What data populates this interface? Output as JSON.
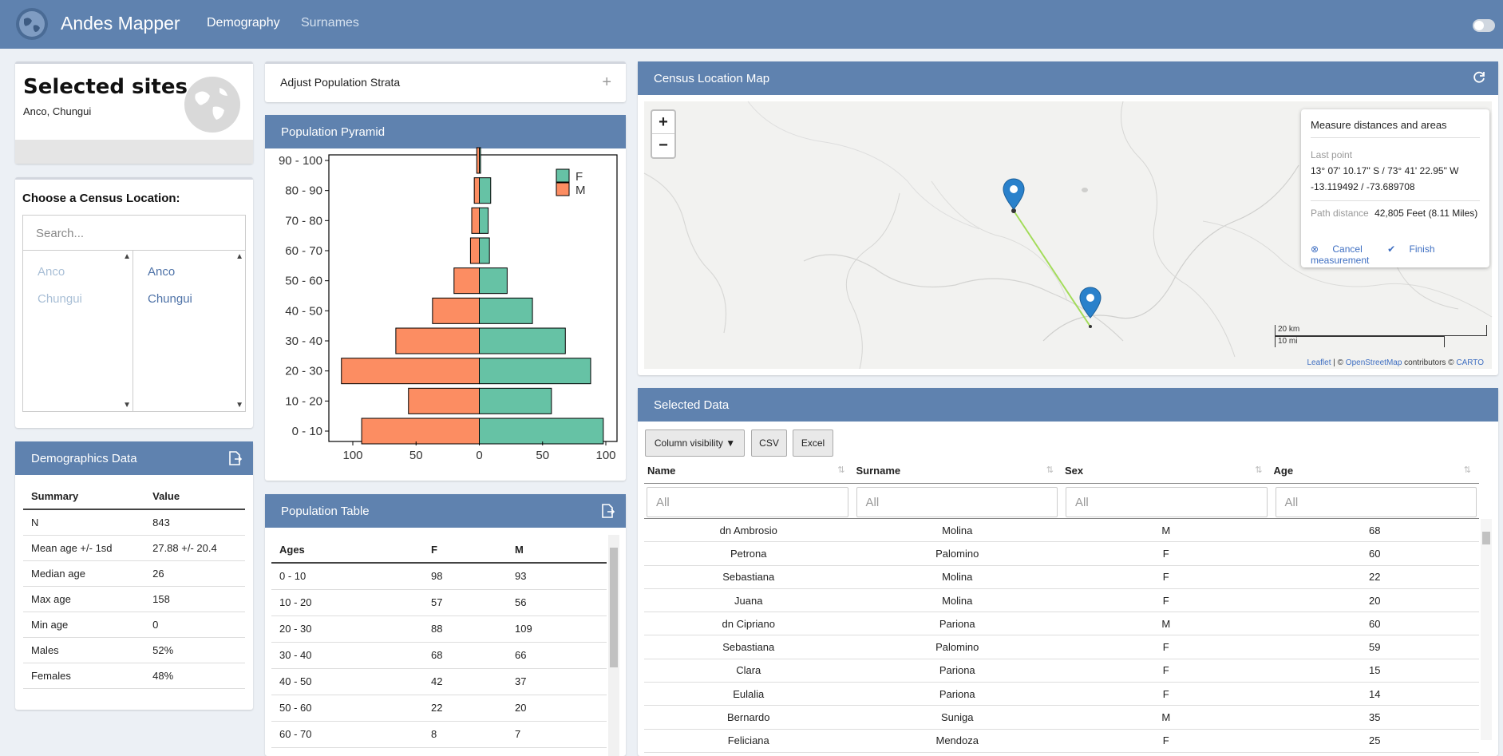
{
  "navbar": {
    "brand": "Andes Mapper",
    "tabs": [
      "Demography",
      "Surnames"
    ],
    "icon": "globe-icon"
  },
  "selected_sites": {
    "title": "Selected sites",
    "subtitle": "Anco, Chungui",
    "icon": "globe-icon"
  },
  "chooser": {
    "title": "Choose a Census Location:",
    "search_placeholder": "Search...",
    "available": [
      "Anco",
      "Chungui"
    ],
    "selected": [
      "Anco",
      "Chungui"
    ]
  },
  "demographics": {
    "title": "Demographics Data",
    "headers": [
      "Summary",
      "Value"
    ],
    "rows": [
      [
        "N",
        "843"
      ],
      [
        "Mean age +/- 1sd",
        "27.88 +/- 20.4"
      ],
      [
        "Median age",
        "26"
      ],
      [
        "Max age",
        "158"
      ],
      [
        "Min age",
        "0"
      ],
      [
        "Males",
        "52%"
      ],
      [
        "Females",
        "48%"
      ]
    ]
  },
  "strata": {
    "title": "Adjust Population Strata",
    "plus": "+"
  },
  "pyramid": {
    "title": "Population Pyramid",
    "colors": {
      "F": "#66c2a5",
      "M": "#fc8d62"
    }
  },
  "chart_data": {
    "type": "bar",
    "orientation": "horizontal",
    "categories": [
      "0 - 10",
      "10 - 20",
      "20 - 30",
      "30 - 40",
      "40 - 50",
      "50 - 60",
      "60 - 70",
      "70 - 80",
      "80 - 90",
      "90 - 100"
    ],
    "series": [
      {
        "name": "F",
        "values": [
          98,
          57,
          88,
          68,
          42,
          22,
          8,
          7,
          9,
          1
        ]
      },
      {
        "name": "M",
        "values": [
          93,
          56,
          109,
          66,
          37,
          20,
          7,
          6,
          4,
          2
        ]
      }
    ],
    "xlim": [
      -110,
      100
    ],
    "xticks": [
      "100",
      "50",
      "0",
      "50",
      "100"
    ],
    "legend": "top-right"
  },
  "pop_table": {
    "title": "Population Table",
    "headers": [
      "Ages",
      "F",
      "M"
    ],
    "rows": [
      [
        "0 - 10",
        "98",
        "93"
      ],
      [
        "10 - 20",
        "57",
        "56"
      ],
      [
        "20 - 30",
        "88",
        "109"
      ],
      [
        "30 - 40",
        "68",
        "66"
      ],
      [
        "40 - 50",
        "42",
        "37"
      ],
      [
        "50 - 60",
        "22",
        "20"
      ],
      [
        "60 - 70",
        "8",
        "7"
      ]
    ]
  },
  "map": {
    "title": "Census Location Map",
    "zoom_in": "+",
    "zoom_out": "−",
    "measure_title": "Measure distances and areas",
    "last_point_label": "Last point",
    "last_point_dms": "13° 07' 10.17\" S / 73° 41' 22.95\" W",
    "last_point_dec": "-13.119492 / -73.689708",
    "path_label": "Path distance",
    "path_value": "42,805 Feet (8.11 Miles)",
    "cancel": "Cancel",
    "finish": "Finish measurement",
    "scale_km": "20 km",
    "scale_mi": "10 mi",
    "attrib_leaflet": "Leaflet",
    "attrib_mid": " | © ",
    "attrib_osm": "OpenStreetMap",
    "attrib_contrib": " contributors © ",
    "attrib_carto": "CARTO"
  },
  "selected_data": {
    "title": "Selected Data",
    "buttons": [
      "Column visibility ▼",
      "CSV",
      "Excel"
    ],
    "headers": [
      "Name",
      "Surname",
      "Sex",
      "Age"
    ],
    "filter_placeholder": "All",
    "rows": [
      [
        "dn Ambrosio",
        "Molina",
        "M",
        "68"
      ],
      [
        "Petrona",
        "Palomino",
        "F",
        "60"
      ],
      [
        "Sebastiana",
        "Molina",
        "F",
        "22"
      ],
      [
        "Juana",
        "Molina",
        "F",
        "20"
      ],
      [
        "dn Cipriano",
        "Pariona",
        "M",
        "60"
      ],
      [
        "Sebastiana",
        "Palomino",
        "F",
        "59"
      ],
      [
        "Clara",
        "Pariona",
        "F",
        "15"
      ],
      [
        "Eulalia",
        "Pariona",
        "F",
        "14"
      ],
      [
        "Bernardo",
        "Suniga",
        "M",
        "35"
      ],
      [
        "Feliciana",
        "Mendoza",
        "F",
        "25"
      ]
    ]
  }
}
